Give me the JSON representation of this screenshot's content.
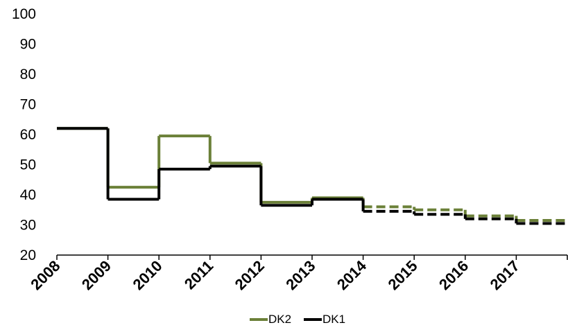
{
  "chart_data": {
    "type": "line",
    "step": true,
    "title": "",
    "xlabel": "",
    "ylabel": "",
    "ylim": [
      20,
      100
    ],
    "yticks": [
      20,
      30,
      40,
      50,
      60,
      70,
      80,
      90,
      100
    ],
    "xlim": [
      2008,
      2018
    ],
    "xticks": [
      2008,
      2009,
      2010,
      2011,
      2012,
      2013,
      2014,
      2015,
      2016,
      2017
    ],
    "xtick_labels": [
      "2008",
      "2009",
      "2010",
      "2011",
      "2012",
      "2013",
      "2014",
      "2015",
      "2016",
      "2017"
    ],
    "grid": false,
    "legend_position": "bottom-center",
    "series": [
      {
        "name": "DK2",
        "color": "#6b8038",
        "periods": [
          {
            "start": 2008,
            "end": 2009,
            "value": 62,
            "style": "solid"
          },
          {
            "start": 2009,
            "end": 2010,
            "value": 42.5,
            "style": "solid"
          },
          {
            "start": 2010,
            "end": 2011,
            "value": 59.5,
            "style": "solid"
          },
          {
            "start": 2011,
            "end": 2012,
            "value": 50.5,
            "style": "solid"
          },
          {
            "start": 2012,
            "end": 2013,
            "value": 37.5,
            "style": "solid"
          },
          {
            "start": 2013,
            "end": 2014,
            "value": 39,
            "style": "solid"
          },
          {
            "start": 2014,
            "end": 2015,
            "value": 36,
            "style": "dashed"
          },
          {
            "start": 2015,
            "end": 2016,
            "value": 35,
            "style": "dashed"
          },
          {
            "start": 2016,
            "end": 2017,
            "value": 33,
            "style": "dashed"
          },
          {
            "start": 2017,
            "end": 2018,
            "value": 31.5,
            "style": "dashed"
          }
        ]
      },
      {
        "name": "DK1",
        "color": "#000000",
        "periods": [
          {
            "start": 2008,
            "end": 2009,
            "value": 62,
            "style": "solid"
          },
          {
            "start": 2009,
            "end": 2010,
            "value": 38.5,
            "style": "solid"
          },
          {
            "start": 2010,
            "end": 2011,
            "value": 48.5,
            "style": "solid"
          },
          {
            "start": 2011,
            "end": 2012,
            "value": 49.5,
            "style": "solid"
          },
          {
            "start": 2012,
            "end": 2013,
            "value": 36.5,
            "style": "solid"
          },
          {
            "start": 2013,
            "end": 2014,
            "value": 38.5,
            "style": "solid"
          },
          {
            "start": 2014,
            "end": 2015,
            "value": 34.5,
            "style": "dashed"
          },
          {
            "start": 2015,
            "end": 2016,
            "value": 33.5,
            "style": "dashed"
          },
          {
            "start": 2016,
            "end": 2017,
            "value": 32,
            "style": "dashed"
          },
          {
            "start": 2017,
            "end": 2018,
            "value": 30.5,
            "style": "dashed"
          }
        ]
      }
    ]
  }
}
